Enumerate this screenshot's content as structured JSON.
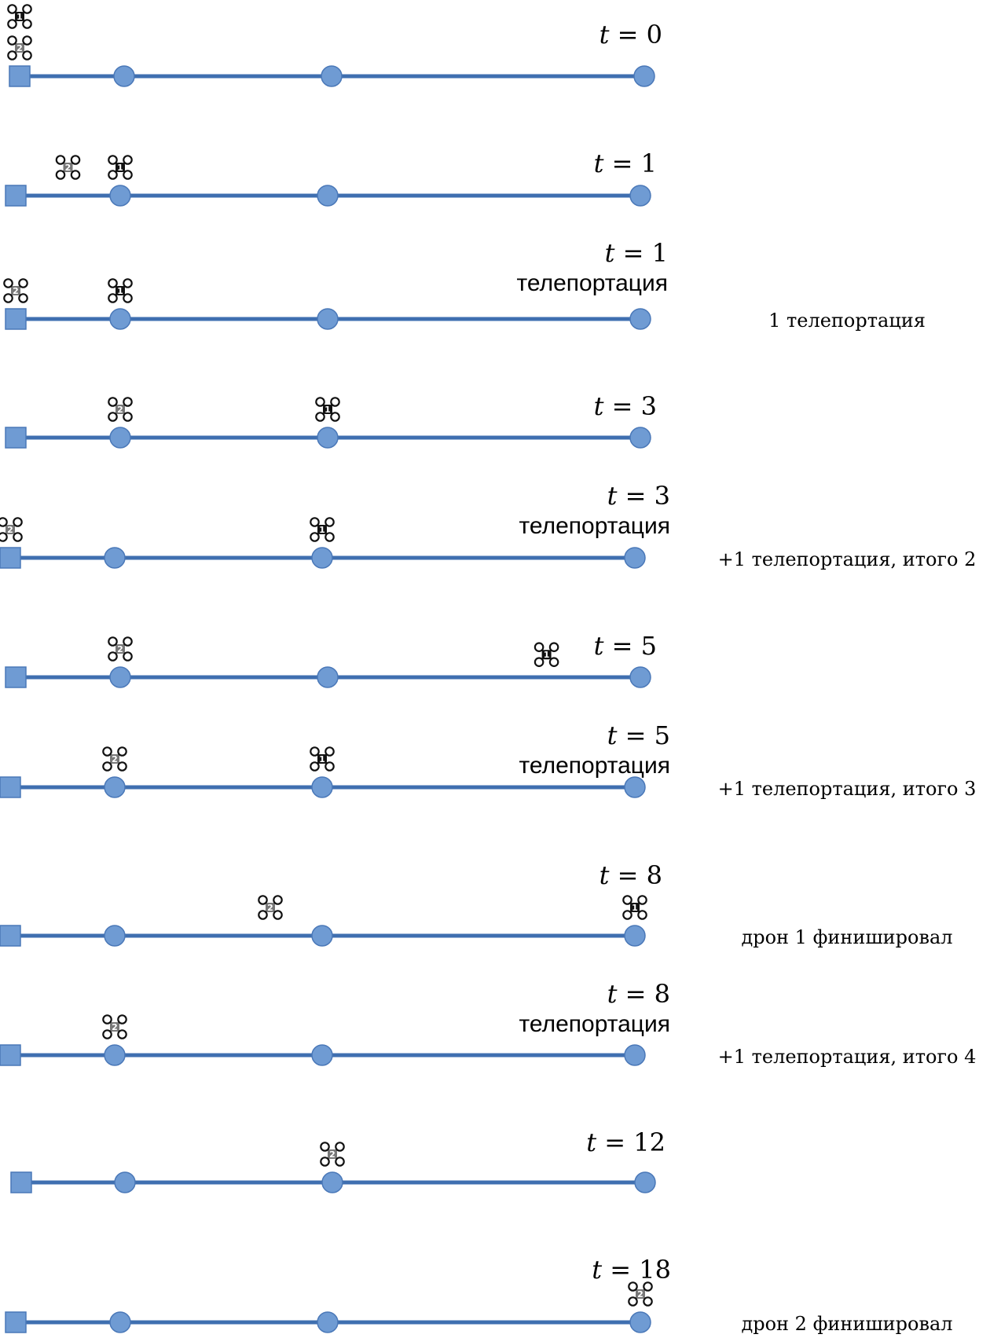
{
  "colors": {
    "track": "#3f6fb0",
    "node_fill": "#6f9bd3",
    "drone_1_body": "#111111",
    "drone_2_body": "#777777"
  },
  "icons": {
    "depot": "square-depot-icon",
    "node": "circle-node-icon",
    "drone": "quadcopter-drone-icon"
  },
  "rows": [
    {
      "time_var": "t",
      "time_value": "= 0",
      "teleport_label": "",
      "note": "",
      "drones": [
        {
          "label": "1",
          "position": 0.0,
          "level": 2
        },
        {
          "label": "2",
          "position": 0.0,
          "level": 1
        }
      ]
    },
    {
      "time_var": "t",
      "time_value": "= 1",
      "teleport_label": "",
      "note": "",
      "drones": [
        {
          "label": "2",
          "position": 0.5,
          "level": 1
        },
        {
          "label": "1",
          "position": 1.0,
          "level": 1
        }
      ]
    },
    {
      "time_var": "t",
      "time_value": "= 1",
      "teleport_label": "телепортация",
      "note": "1 телепортация",
      "drones": [
        {
          "label": "2",
          "position": 0.0,
          "level": 1
        },
        {
          "label": "1",
          "position": 1.0,
          "level": 1
        }
      ]
    },
    {
      "time_var": "t",
      "time_value": "= 3",
      "teleport_label": "",
      "note": "",
      "drones": [
        {
          "label": "2",
          "position": 1.0,
          "level": 1
        },
        {
          "label": "1",
          "position": 2.0,
          "level": 1
        }
      ]
    },
    {
      "time_var": "t",
      "time_value": "= 3",
      "teleport_label": "телепортация",
      "note": "+1 телепортация, итого 2",
      "drones": [
        {
          "label": "2",
          "position": 0.0,
          "level": 1
        },
        {
          "label": "1",
          "position": 2.0,
          "level": 1
        }
      ]
    },
    {
      "time_var": "t",
      "time_value": "= 5",
      "teleport_label": "",
      "note": "",
      "drones": [
        {
          "label": "2",
          "position": 1.0,
          "level": 1
        },
        {
          "label": "1",
          "position": 2.7,
          "level": 0.8
        }
      ]
    },
    {
      "time_var": "t",
      "time_value": "= 5",
      "teleport_label": "телепортация",
      "note": "+1 телепортация, итого 3",
      "drones": [
        {
          "label": "2",
          "position": 1.0,
          "level": 1
        },
        {
          "label": "1",
          "position": 2.0,
          "level": 1
        }
      ]
    },
    {
      "time_var": "t",
      "time_value": "= 8",
      "teleport_label": "",
      "note": "дрон 1 финишировал",
      "drones": [
        {
          "label": "2",
          "position": 1.75,
          "level": 1
        },
        {
          "label": "1",
          "position": 3.0,
          "level": 1
        }
      ]
    },
    {
      "time_var": "t",
      "time_value": "= 8",
      "teleport_label": "телепортация",
      "note": "+1 телепортация, итого 4",
      "drones": [
        {
          "label": "2",
          "position": 1.0,
          "level": 1
        }
      ]
    },
    {
      "time_var": "t",
      "time_value": "= 12",
      "teleport_label": "",
      "note": "",
      "drones": [
        {
          "label": "2",
          "position": 2.0,
          "level": 1
        }
      ]
    },
    {
      "time_var": "t",
      "time_value": "= 18",
      "teleport_label": "",
      "note": "дрон 2 финишировал",
      "drones": [
        {
          "label": "2",
          "position": 3.0,
          "level": 1
        }
      ]
    }
  ]
}
